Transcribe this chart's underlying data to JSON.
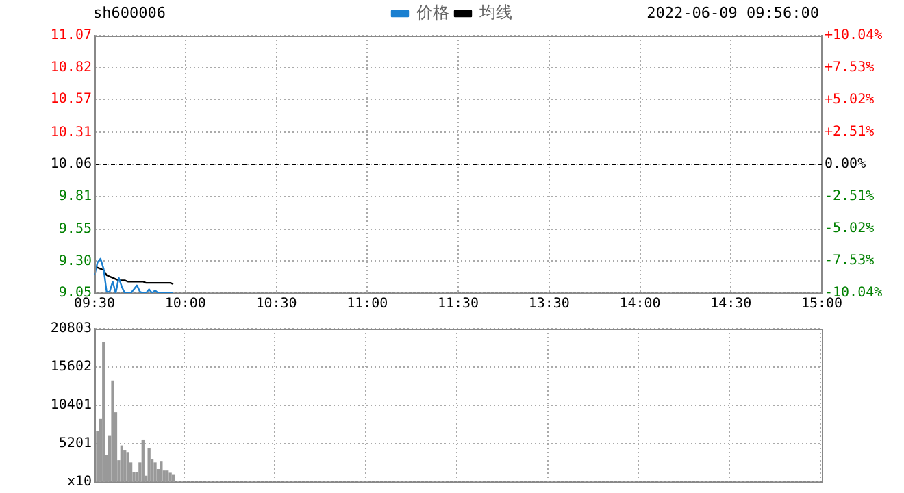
{
  "chart_data": [
    {
      "type": "line",
      "title": "sh600006",
      "annotations": [
        "2022-06-09 09:56:00"
      ],
      "categories": [
        "09:30",
        null,
        null,
        null,
        null,
        null,
        null,
        null,
        null,
        null,
        null,
        null,
        null,
        null,
        null,
        null,
        null,
        null,
        null,
        null,
        null,
        null,
        null,
        null,
        null,
        null,
        null,
        null,
        null,
        null,
        "10:00",
        null,
        null,
        null,
        null,
        null,
        null,
        null,
        null,
        null,
        null,
        null,
        null,
        null,
        null,
        null,
        null,
        null,
        null,
        null,
        null,
        null,
        null,
        null,
        null,
        null,
        null,
        null,
        null,
        null,
        "10:30",
        null,
        null,
        null,
        null,
        null,
        null,
        null,
        null,
        null,
        null,
        null,
        null,
        null,
        null,
        null,
        null,
        null,
        null,
        null,
        null,
        null,
        null,
        null,
        null,
        null,
        null,
        null,
        null,
        null,
        "11:00",
        null,
        null,
        null,
        null,
        null,
        null,
        null,
        null,
        null,
        null,
        null,
        null,
        null,
        null,
        null,
        null,
        null,
        null,
        null,
        null,
        null,
        null,
        null,
        null,
        null,
        null,
        null,
        null,
        null,
        "11:30",
        null,
        null,
        null,
        null,
        null,
        null,
        null,
        null,
        null,
        null,
        null,
        null,
        null,
        null,
        null,
        null,
        null,
        null,
        null,
        null,
        null,
        null,
        null,
        null,
        null,
        null,
        null,
        null,
        null,
        "13:30",
        null,
        null,
        null,
        null,
        null,
        null,
        null,
        null,
        null,
        null,
        null,
        null,
        null,
        null,
        null,
        null,
        null,
        null,
        null,
        null,
        null,
        null,
        null,
        null,
        null,
        null,
        null,
        null,
        null,
        "14:00",
        null,
        null,
        null,
        null,
        null,
        null,
        null,
        null,
        null,
        null,
        null,
        null,
        null,
        null,
        null,
        null,
        null,
        null,
        null,
        null,
        null,
        null,
        null,
        null,
        null,
        null,
        null,
        null,
        null,
        "14:30",
        null,
        null,
        null,
        null,
        null,
        null,
        null,
        null,
        null,
        null,
        null,
        null,
        null,
        null,
        null,
        null,
        null,
        null,
        null,
        null,
        null,
        null,
        null,
        null,
        null,
        null,
        null,
        null,
        null,
        "15:00"
      ],
      "series": [
        {
          "name": "价格",
          "color": "#1a7fd0",
          "values": [
            9.19,
            9.29,
            9.32,
            9.24,
            9.06,
            9.06,
            9.14,
            9.05,
            9.17,
            9.1,
            9.05,
            9.05,
            9.05,
            9.08,
            9.11,
            9.06,
            9.05,
            9.05,
            9.08,
            9.05,
            9.07,
            9.05,
            9.05,
            9.05,
            9.05,
            9.05,
            9.05,
            null,
            null,
            null,
            null,
            null,
            null,
            null,
            null,
            null,
            null,
            null,
            null,
            null,
            null,
            null,
            null,
            null,
            null,
            null,
            null,
            null,
            null,
            null,
            null,
            null,
            null,
            null,
            null,
            null,
            null,
            null,
            null,
            null,
            null,
            null,
            null,
            null,
            null,
            null,
            null,
            null,
            null,
            null,
            null,
            null,
            null,
            null,
            null,
            null,
            null,
            null,
            null,
            null,
            null,
            null,
            null,
            null,
            null,
            null,
            null,
            null,
            null,
            null,
            null,
            null,
            null,
            null,
            null,
            null,
            null,
            null,
            null,
            null,
            null,
            null,
            null,
            null,
            null,
            null,
            null,
            null,
            null,
            null,
            null,
            null,
            null,
            null,
            null,
            null,
            null,
            null,
            null,
            null,
            null,
            null,
            null,
            null,
            null,
            null,
            null,
            null,
            null,
            null,
            null,
            null,
            null,
            null,
            null,
            null,
            null,
            null,
            null,
            null,
            null,
            null,
            null,
            null,
            null,
            null,
            null,
            null,
            null,
            null,
            null,
            null,
            null,
            null,
            null,
            null,
            null,
            null,
            null,
            null,
            null,
            null,
            null,
            null,
            null,
            null,
            null,
            null,
            null,
            null,
            null,
            null,
            null,
            null,
            null,
            null,
            null,
            null,
            null,
            null,
            null,
            null,
            null,
            null,
            null,
            null,
            null,
            null,
            null,
            null,
            null,
            null,
            null,
            null,
            null,
            null,
            null,
            null,
            null,
            null,
            null,
            null,
            null,
            null,
            null,
            null,
            null,
            null,
            null,
            null,
            null,
            null,
            null,
            null,
            null,
            null,
            null,
            null,
            null,
            null,
            null,
            null,
            null,
            null,
            null,
            null,
            null,
            null,
            null,
            null,
            null,
            null,
            null,
            null,
            null,
            null,
            null,
            null,
            null,
            null,
            null
          ]
        },
        {
          "name": "均线",
          "color": "#000000",
          "values": [
            9.25,
            9.25,
            9.24,
            9.23,
            9.19,
            9.18,
            9.17,
            9.16,
            9.15,
            9.15,
            9.15,
            9.14,
            9.14,
            9.14,
            9.14,
            9.14,
            9.14,
            9.13,
            9.13,
            9.13,
            9.13,
            9.13,
            9.13,
            9.13,
            9.13,
            9.13,
            9.12,
            null,
            null,
            null,
            null,
            null,
            null,
            null,
            null,
            null,
            null,
            null,
            null,
            null,
            null,
            null,
            null,
            null,
            null,
            null,
            null,
            null,
            null,
            null,
            null,
            null,
            null,
            null,
            null,
            null,
            null,
            null,
            null,
            null,
            null,
            null,
            null,
            null,
            null,
            null,
            null,
            null,
            null,
            null,
            null,
            null,
            null,
            null,
            null,
            null,
            null,
            null,
            null,
            null,
            null,
            null,
            null,
            null,
            null,
            null,
            null,
            null,
            null,
            null,
            null,
            null,
            null,
            null,
            null,
            null,
            null,
            null,
            null,
            null,
            null,
            null,
            null,
            null,
            null,
            null,
            null,
            null,
            null,
            null,
            null,
            null,
            null,
            null,
            null,
            null,
            null,
            null,
            null,
            null,
            null,
            null,
            null,
            null,
            null,
            null,
            null,
            null,
            null,
            null,
            null,
            null,
            null,
            null,
            null,
            null,
            null,
            null,
            null,
            null,
            null,
            null,
            null,
            null,
            null,
            null,
            null,
            null,
            null,
            null,
            null,
            null,
            null,
            null,
            null,
            null,
            null,
            null,
            null,
            null,
            null,
            null,
            null,
            null,
            null,
            null,
            null,
            null,
            null,
            null,
            null,
            null,
            null,
            null,
            null,
            null,
            null,
            null,
            null,
            null,
            null,
            null,
            null,
            null,
            null,
            null,
            null,
            null,
            null,
            null,
            null,
            null,
            null,
            null,
            null,
            null,
            null,
            null,
            null,
            null,
            null,
            null,
            null,
            null,
            null,
            null,
            null,
            null,
            null,
            null,
            null,
            null,
            null,
            null,
            null,
            null,
            null,
            null,
            null,
            null,
            null,
            null,
            null,
            null,
            null,
            null,
            null,
            null,
            null,
            null,
            null,
            null,
            null,
            null,
            null,
            null,
            null,
            null,
            null,
            null,
            null
          ]
        }
      ],
      "ylim": [
        9.05,
        11.07
      ],
      "yticks": [
        11.07,
        10.82,
        10.57,
        10.31,
        10.06,
        9.81,
        9.55,
        {
          "value": 9.3,
          "label": "9.30"
        },
        9.05
      ],
      "y2lim": [
        -10.04,
        10.04
      ],
      "y2ticks": [
        {
          "value": 10.04,
          "label": "+10.04%"
        },
        {
          "value": 7.53,
          "label": "+7.53%"
        },
        {
          "value": 5.02,
          "label": "+5.02%"
        },
        {
          "value": 2.51,
          "label": "+2.51%"
        },
        {
          "value": 0,
          "label": "0.00%"
        },
        {
          "value": -2.51,
          "label": "-2.51%"
        },
        {
          "value": -5.02,
          "label": "-5.02%"
        },
        {
          "value": -7.53,
          "label": "-7.53%"
        },
        {
          "value": -10.04,
          "label": "-10.04%"
        }
      ],
      "ref_lines": [
        {
          "axis": "y",
          "value": 10.06,
          "color": "#000000",
          "line_style": "dashed"
        }
      ],
      "grid": true,
      "legend": "top",
      "marker": "none",
      "line_style": "solid"
    },
    {
      "type": "bar",
      "categories": [
        null,
        null,
        null,
        null,
        null,
        null,
        null,
        null,
        null,
        null,
        null,
        null,
        null,
        null,
        null,
        null,
        null,
        null,
        null,
        null,
        null,
        null,
        null,
        null,
        null,
        null,
        null,
        null,
        null,
        null,
        null,
        null,
        null,
        null,
        null,
        null,
        null,
        null,
        null,
        null,
        null,
        null,
        null,
        null,
        null,
        null,
        null,
        null,
        null,
        null,
        null,
        null,
        null,
        null,
        null,
        null,
        null,
        null,
        null,
        null,
        null,
        null,
        null,
        null,
        null,
        null,
        null,
        null,
        null,
        null,
        null,
        null,
        null,
        null,
        null,
        null,
        null,
        null,
        null,
        null,
        null,
        null,
        null,
        null,
        null,
        null,
        null,
        null,
        null,
        null,
        null,
        null,
        null,
        null,
        null,
        null,
        null,
        null,
        null,
        null,
        null,
        null,
        null,
        null,
        null,
        null,
        null,
        null,
        null,
        null,
        null,
        null,
        null,
        null,
        null,
        null,
        null,
        null,
        null,
        null,
        null,
        null,
        null,
        null,
        null,
        null,
        null,
        null,
        null,
        null,
        null,
        null,
        null,
        null,
        null,
        null,
        null,
        null,
        null,
        null,
        null,
        null,
        null,
        null,
        null,
        null,
        null,
        null,
        null,
        null,
        null,
        null,
        null,
        null,
        null,
        null,
        null,
        null,
        null,
        null,
        null,
        null,
        null,
        null,
        null,
        null,
        null,
        null,
        null,
        null,
        null,
        null,
        null,
        null,
        null,
        null,
        null,
        null,
        null,
        null,
        null,
        null,
        null,
        null,
        null,
        null,
        null,
        null,
        null,
        null,
        null,
        null,
        null,
        null,
        null,
        null,
        null,
        null,
        null,
        null,
        null,
        null,
        null,
        null,
        null,
        null,
        null,
        null,
        null,
        null,
        null,
        null,
        null,
        null,
        null,
        null,
        null,
        null,
        null,
        null,
        null,
        null,
        null,
        null,
        null,
        null,
        null,
        null,
        null,
        null,
        null,
        null,
        null,
        null,
        null,
        null,
        null,
        null,
        null,
        null,
        null
      ],
      "values": [
        null,
        6900,
        8500,
        18900,
        3600,
        6200,
        13700,
        9400,
        2900,
        4900,
        4300,
        4000,
        2600,
        1300,
        1300,
        2600,
        5700,
        800,
        4500,
        3000,
        2600,
        1700,
        2800,
        1500,
        1500,
        1200,
        1000,
        null,
        null,
        null,
        null,
        null,
        null,
        null,
        null,
        null,
        null,
        null,
        null,
        null,
        null,
        null,
        null,
        null,
        null,
        null,
        null,
        null,
        null,
        null,
        null,
        null,
        null,
        null,
        null,
        null,
        null,
        null,
        null,
        null,
        null,
        null,
        null,
        null,
        null,
        null,
        null,
        null,
        null,
        null,
        null,
        null,
        null,
        null,
        null,
        null,
        null,
        null,
        null,
        null,
        null,
        null,
        null,
        null,
        null,
        null,
        null,
        null,
        null,
        null,
        null,
        null,
        null,
        null,
        null,
        null,
        null,
        null,
        null,
        null,
        null,
        null,
        null,
        null,
        null,
        null,
        null,
        null,
        null,
        null,
        null,
        null,
        null,
        null,
        null,
        null,
        null,
        null,
        null,
        null,
        null,
        null,
        null,
        null,
        null,
        null,
        null,
        null,
        null,
        null,
        null,
        null,
        null,
        null,
        null,
        null,
        null,
        null,
        null,
        null,
        null,
        null,
        null,
        null,
        null,
        null,
        null,
        null,
        null,
        null,
        null,
        null,
        null,
        null,
        null,
        null,
        null,
        null,
        null,
        null,
        null,
        null,
        null,
        null,
        null,
        null,
        null,
        null,
        null,
        null,
        null,
        null,
        null,
        null,
        null,
        null,
        null,
        null,
        null,
        null,
        null,
        null,
        null,
        null,
        null,
        null,
        null,
        null,
        null,
        null,
        null,
        null,
        null,
        null,
        null,
        null,
        null,
        null,
        null,
        null,
        null,
        null,
        null,
        null,
        null,
        null,
        null,
        null,
        null,
        null,
        null,
        null,
        null,
        null,
        null,
        null,
        null,
        null,
        null,
        null,
        null,
        null,
        null,
        null,
        null,
        null,
        null,
        null,
        null,
        null,
        null,
        null,
        null,
        null,
        null,
        null,
        null,
        null,
        null,
        null,
        null
      ],
      "color": "#999999",
      "ylim": [
        0,
        20803
      ],
      "yticks": [
        {
          "value": 0,
          "label": "x10"
        },
        5201,
        10401,
        15602,
        20803
      ],
      "tick_labels": "y",
      "grid": true,
      "legend": false
    }
  ]
}
